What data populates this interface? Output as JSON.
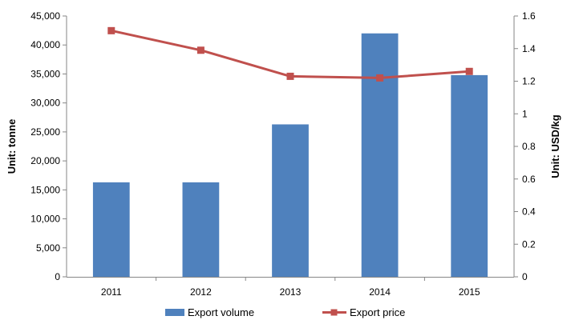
{
  "chart_data": {
    "type": "bar+line",
    "categories": [
      "2011",
      "2012",
      "2013",
      "2014",
      "2015"
    ],
    "series": [
      {
        "name": "Export volume",
        "type": "bar",
        "axis": "left",
        "color": "#4F81BD",
        "values": [
          16300,
          16300,
          26300,
          42000,
          34800
        ]
      },
      {
        "name": "Export price",
        "type": "line",
        "axis": "right",
        "color": "#C0504D",
        "values": [
          1.51,
          1.39,
          1.23,
          1.22,
          1.26
        ]
      }
    ],
    "ylabel_left": "Unit: tonne",
    "ylabel_right": "Unit: USD/kg",
    "ylim_left": [
      0,
      45000
    ],
    "ylim_right": [
      0,
      1.6
    ],
    "yticks_left": [
      "0",
      "5,000",
      "10,000",
      "15,000",
      "20,000",
      "25,000",
      "30,000",
      "35,000",
      "40,000",
      "45,000"
    ],
    "yticks_right": [
      "0",
      "0.2",
      "0.4",
      "0.6",
      "0.8",
      "1",
      "1.2",
      "1.4",
      "1.6"
    ],
    "grid": false,
    "legend": "bottom"
  }
}
